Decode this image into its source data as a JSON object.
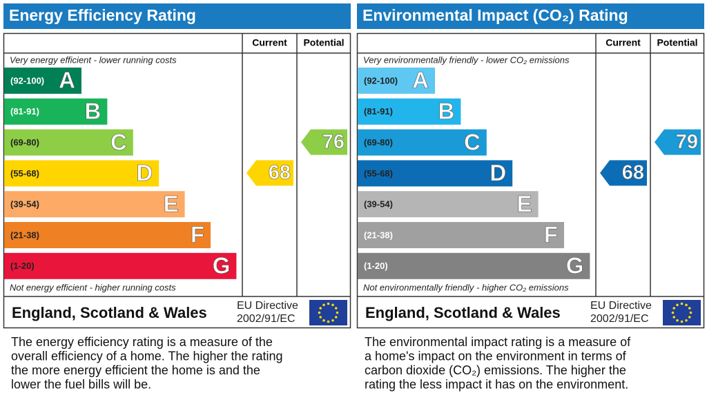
{
  "panels": [
    {
      "title": "Energy Efficiency Rating",
      "headers": [
        "Current",
        "Potential"
      ],
      "top_caption": "Very energy efficient - lower running costs",
      "bottom_caption": "Not energy efficient - higher running costs",
      "bands": [
        {
          "range": "(92-100)",
          "letter": "A",
          "color": "#008054",
          "text_color": "#ffffff"
        },
        {
          "range": "(81-91)",
          "letter": "B",
          "color": "#19b459",
          "text_color": "#ffffff"
        },
        {
          "range": "(69-80)",
          "letter": "C",
          "color": "#8dce46",
          "text_color": "#222222"
        },
        {
          "range": "(55-68)",
          "letter": "D",
          "color": "#ffd500",
          "text_color": "#222222"
        },
        {
          "range": "(39-54)",
          "letter": "E",
          "color": "#fcaa65",
          "text_color": "#222222"
        },
        {
          "range": "(21-38)",
          "letter": "F",
          "color": "#ef8023",
          "text_color": "#222222"
        },
        {
          "range": "(1-20)",
          "letter": "G",
          "color": "#e9153b",
          "text_color": "#222222"
        }
      ],
      "current": 68,
      "potential": 76,
      "footer": {
        "region": "England, Scotland & Wales",
        "directive": [
          "EU Directive",
          "2002/91/EC"
        ]
      },
      "description": [
        "The energy efficiency rating is a measure of the",
        "overall efficiency of a home. The higher the rating",
        "the more energy efficient the home is and the",
        "lower the fuel bills will be."
      ]
    },
    {
      "title": "Environmental Impact (CO₂) Rating",
      "headers": [
        "Current",
        "Potential"
      ],
      "top_caption": "Very environmentally friendly - lower CO₂ emissions",
      "bottom_caption": "Not environmentally friendly - higher CO₂ emissions",
      "bands": [
        {
          "range": "(92-100)",
          "letter": "A",
          "color": "#5ec8f2",
          "text_color": "#222222"
        },
        {
          "range": "(81-91)",
          "letter": "B",
          "color": "#22b5ec",
          "text_color": "#222222"
        },
        {
          "range": "(69-80)",
          "letter": "C",
          "color": "#1a9ad6",
          "text_color": "#222222"
        },
        {
          "range": "(55-68)",
          "letter": "D",
          "color": "#0c6db5",
          "text_color": "#222222"
        },
        {
          "range": "(39-54)",
          "letter": "E",
          "color": "#b5b5b5",
          "text_color": "#222222"
        },
        {
          "range": "(21-38)",
          "letter": "F",
          "color": "#a0a0a0",
          "text_color": "#ffffff"
        },
        {
          "range": "(1-20)",
          "letter": "G",
          "color": "#828282",
          "text_color": "#ffffff"
        }
      ],
      "current": 68,
      "potential": 79,
      "footer": {
        "region": "England, Scotland & Wales",
        "directive": [
          "EU Directive",
          "2002/91/EC"
        ]
      },
      "description": [
        "The environmental impact rating is a measure of",
        "a home's impact on the environment in terms of",
        "carbon dioxide (CO₂) emissions. The higher the",
        "rating the less impact it has on the environment."
      ]
    }
  ]
}
